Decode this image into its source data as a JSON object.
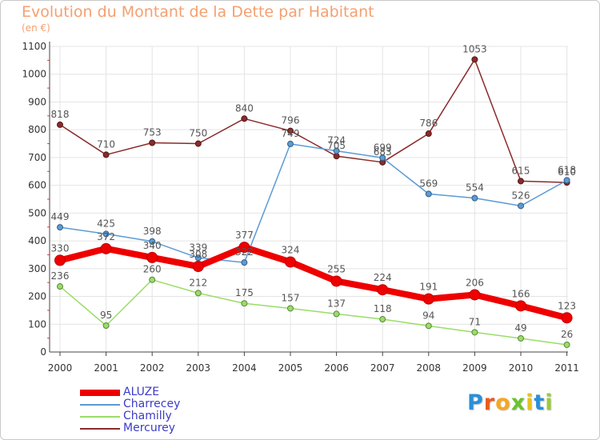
{
  "title": "Evolution du Montant de la Dette par Habitant",
  "subtitle": "(en €)",
  "logo": {
    "letters": [
      "P",
      "r",
      "o",
      "x",
      "i",
      "t",
      "i"
    ],
    "colors": [
      "#2a8fd8",
      "#e85a1e",
      "#f4a820",
      "#6cc22c",
      "#e8c020",
      "#2a8fd8",
      "#9acd32"
    ]
  },
  "chart_data": {
    "type": "line",
    "x": [
      "2000",
      "2001",
      "2002",
      "2003",
      "2004",
      "2005",
      "2006",
      "2007",
      "2008",
      "2009",
      "2010",
      "2011"
    ],
    "ylim": [
      0,
      1100
    ],
    "yticks": [
      0,
      100,
      200,
      300,
      400,
      500,
      600,
      700,
      800,
      900,
      1000,
      1100
    ],
    "grid": true,
    "legend": "bottom-left",
    "series": [
      {
        "name": "Mercurey",
        "color": "#8b2a2a",
        "values": [
          818,
          710,
          753,
          750,
          840,
          796,
          705,
          683,
          786,
          1053,
          615,
          610
        ]
      },
      {
        "name": "Charrecey",
        "color": "#5b9bd5",
        "values": [
          449,
          425,
          398,
          339,
          322,
          749,
          724,
          699,
          569,
          554,
          526,
          618
        ]
      },
      {
        "name": "Chamilly",
        "color": "#99dd66",
        "values": [
          236,
          95,
          260,
          212,
          175,
          157,
          137,
          118,
          94,
          71,
          49,
          26
        ]
      },
      {
        "name": "ALUZE",
        "color": "#ee0000",
        "values": [
          330,
          372,
          340,
          308,
          377,
          324,
          255,
          224,
          191,
          206,
          166,
          123
        ]
      }
    ]
  },
  "legend_order": [
    "ALUZE",
    "Charrecey",
    "Chamilly",
    "Mercurey"
  ]
}
